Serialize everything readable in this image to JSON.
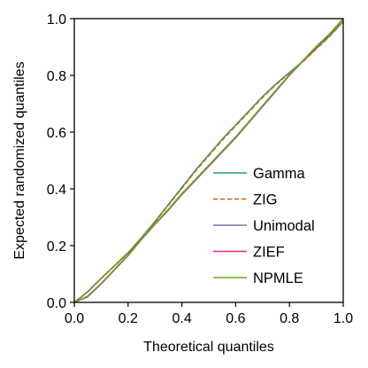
{
  "chart_data": {
    "type": "line",
    "title": "",
    "xlabel": "Theoretical quantiles",
    "ylabel": "Expected randomized quantiles",
    "xlim": [
      0,
      1
    ],
    "ylim": [
      0,
      1
    ],
    "xticks": [
      "0.0",
      "0.2",
      "0.4",
      "0.6",
      "0.8",
      "1.0"
    ],
    "yticks": [
      "0.0",
      "0.2",
      "0.4",
      "0.6",
      "0.8",
      "1.0"
    ],
    "grid": false,
    "legend_position": "lower-right",
    "reference_line": {
      "x": [
        0,
        1
      ],
      "y": [
        0,
        1
      ]
    },
    "series": [
      {
        "name": "Gamma",
        "color": "#1b9e77",
        "dash": "solid",
        "x": [
          0,
          0.05,
          0.1,
          0.15,
          0.2,
          0.25,
          0.3,
          0.35,
          0.4,
          0.45,
          0.5,
          0.55,
          0.6,
          0.65,
          0.7,
          0.75,
          0.8,
          0.85,
          0.9,
          0.95,
          1
        ],
        "y": [
          0,
          0.038,
          0.085,
          0.13,
          0.175,
          0.228,
          0.285,
          0.345,
          0.405,
          0.465,
          0.52,
          0.575,
          0.625,
          0.675,
          0.725,
          0.77,
          0.81,
          0.85,
          0.895,
          0.94,
          0.99
        ]
      },
      {
        "name": "ZIG",
        "color": "#d95f02",
        "dash": "dashed",
        "x": [
          0,
          0.05,
          0.1,
          0.15,
          0.2,
          0.25,
          0.3,
          0.35,
          0.4,
          0.45,
          0.5,
          0.55,
          0.6,
          0.65,
          0.7,
          0.75,
          0.8,
          0.85,
          0.9,
          0.95,
          1
        ],
        "y": [
          0,
          0.037,
          0.084,
          0.129,
          0.174,
          0.226,
          0.283,
          0.343,
          0.402,
          0.462,
          0.517,
          0.572,
          0.622,
          0.672,
          0.722,
          0.768,
          0.808,
          0.848,
          0.893,
          0.938,
          0.99
        ]
      },
      {
        "name": "Unimodal",
        "color": "#7570b3",
        "dash": "solid",
        "x": [
          0,
          0.05,
          0.1,
          0.15,
          0.2,
          0.25,
          0.3,
          0.35,
          0.4,
          0.45,
          0.5,
          0.55,
          0.6,
          0.65,
          0.7,
          0.75,
          0.8,
          0.85,
          0.9,
          0.95,
          1
        ],
        "y": [
          0,
          0.02,
          0.065,
          0.115,
          0.165,
          0.222,
          0.275,
          0.325,
          0.38,
          0.43,
          0.48,
          0.53,
          0.58,
          0.635,
          0.69,
          0.745,
          0.8,
          0.85,
          0.9,
          0.945,
          1
        ]
      },
      {
        "name": "ZIEF",
        "color": "#e7298a",
        "dash": "solid",
        "x": [
          0,
          0.05,
          0.1,
          0.15,
          0.2,
          0.25,
          0.3,
          0.35,
          0.4,
          0.45,
          0.5,
          0.55,
          0.6,
          0.65,
          0.7,
          0.75,
          0.8,
          0.85,
          0.9,
          0.95,
          1
        ],
        "y": [
          0,
          0.021,
          0.066,
          0.116,
          0.166,
          0.223,
          0.276,
          0.326,
          0.381,
          0.431,
          0.481,
          0.531,
          0.581,
          0.636,
          0.691,
          0.746,
          0.801,
          0.851,
          0.901,
          0.946,
          1
        ]
      },
      {
        "name": "NPMLE",
        "color": "#66a61e",
        "dash": "solid",
        "x": [
          0,
          0.05,
          0.1,
          0.15,
          0.2,
          0.25,
          0.3,
          0.35,
          0.4,
          0.45,
          0.5,
          0.55,
          0.6,
          0.65,
          0.7,
          0.75,
          0.8,
          0.85,
          0.9,
          0.95,
          1
        ],
        "y": [
          0,
          0.022,
          0.067,
          0.117,
          0.167,
          0.224,
          0.277,
          0.328,
          0.383,
          0.433,
          0.483,
          0.533,
          0.583,
          0.638,
          0.693,
          0.748,
          0.802,
          0.852,
          0.902,
          0.947,
          1
        ]
      }
    ]
  }
}
